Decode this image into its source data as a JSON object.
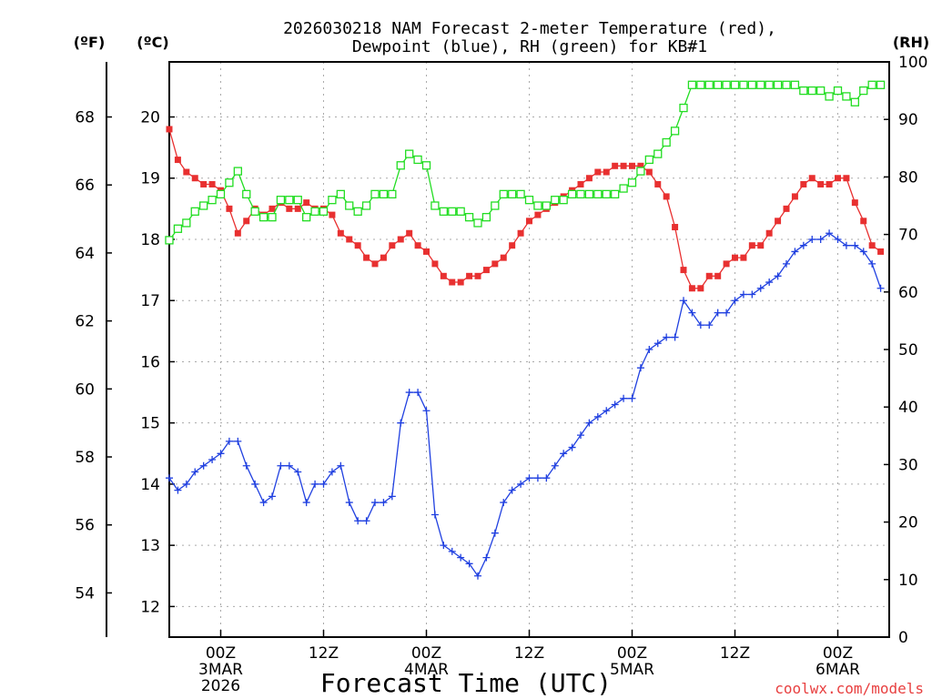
{
  "chart_data": {
    "type": "line",
    "title_line1": "2026030218 NAM Forecast 2-meter Temperature (red),",
    "title_line2": "Dewpoint (blue), RH (green) for KB#1",
    "xlabel": "Forecast Time (UTC)",
    "watermark": "coolwx.com/models",
    "left_outer_axis": {
      "label": "(ºF)",
      "ticks": [
        54,
        56,
        58,
        60,
        62,
        64,
        66,
        68
      ]
    },
    "left_axis": {
      "label": "(ºC)",
      "ylim": [
        11.5,
        20.9
      ],
      "ticks": [
        12,
        13,
        14,
        15,
        16,
        17,
        18,
        19,
        20
      ]
    },
    "right_axis": {
      "label": "(RH)",
      "ylim": [
        0,
        100
      ],
      "ticks": [
        0,
        10,
        20,
        30,
        40,
        50,
        60,
        70,
        80,
        90,
        100
      ]
    },
    "x_range_hours": [
      0,
      84
    ],
    "x_ticks": [
      {
        "hour": 6,
        "label": "00Z",
        "sub1": "3MAR",
        "sub2": "2026"
      },
      {
        "hour": 18,
        "label": "12Z"
      },
      {
        "hour": 30,
        "label": "00Z",
        "sub1": "4MAR"
      },
      {
        "hour": 42,
        "label": "12Z"
      },
      {
        "hour": 54,
        "label": "00Z",
        "sub1": "5MAR"
      },
      {
        "hour": 66,
        "label": "12Z"
      },
      {
        "hour": 78,
        "label": "00Z",
        "sub1": "6MAR"
      }
    ],
    "colors": {
      "temperature": "#e83030",
      "dewpoint": "#2040e0",
      "rh": "#22dd22",
      "grid": "#aaaaaa"
    },
    "series": [
      {
        "name": "Temperature",
        "unit": "C",
        "values": [
          19.8,
          19.3,
          19.1,
          19.0,
          18.9,
          18.9,
          18.8,
          18.5,
          18.1,
          18.3,
          18.5,
          18.4,
          18.5,
          18.6,
          18.5,
          18.5,
          18.6,
          18.5,
          18.5,
          18.4,
          18.1,
          18.0,
          17.9,
          17.7,
          17.6,
          17.7,
          17.9,
          18.0,
          18.1,
          17.9,
          17.8,
          17.6,
          17.4,
          17.3,
          17.3,
          17.4,
          17.4,
          17.5,
          17.6,
          17.7,
          17.9,
          18.1,
          18.3,
          18.4,
          18.5,
          18.6,
          18.7,
          18.8,
          18.9,
          19.0,
          19.1,
          19.1,
          19.2,
          19.2,
          19.2,
          19.2,
          19.1,
          18.9,
          18.7,
          18.2,
          17.5,
          17.2,
          17.2,
          17.4,
          17.4,
          17.6,
          17.7,
          17.7,
          17.9,
          17.9,
          18.1,
          18.3,
          18.5,
          18.7,
          18.9,
          19.0,
          18.9,
          18.9,
          19.0,
          19.0,
          18.6,
          18.3,
          17.9,
          17.8
        ]
      },
      {
        "name": "Dewpoint",
        "unit": "C",
        "values": [
          14.1,
          13.9,
          14.0,
          14.2,
          14.3,
          14.4,
          14.5,
          14.7,
          14.7,
          14.3,
          14.0,
          13.7,
          13.8,
          14.3,
          14.3,
          14.2,
          13.7,
          14.0,
          14.0,
          14.2,
          14.3,
          13.7,
          13.4,
          13.4,
          13.7,
          13.7,
          13.8,
          15.0,
          15.5,
          15.5,
          15.2,
          13.5,
          13.0,
          12.9,
          12.8,
          12.7,
          12.5,
          12.8,
          13.2,
          13.7,
          13.9,
          14.0,
          14.1,
          14.1,
          14.1,
          14.3,
          14.5,
          14.6,
          14.8,
          15.0,
          15.1,
          15.2,
          15.3,
          15.4,
          15.4,
          15.9,
          16.2,
          16.3,
          16.4,
          16.4,
          17.0,
          16.8,
          16.6,
          16.6,
          16.8,
          16.8,
          17.0,
          17.1,
          17.1,
          17.2,
          17.3,
          17.4,
          17.6,
          17.8,
          17.9,
          18.0,
          18.0,
          18.1,
          18.0,
          17.9,
          17.9,
          17.8,
          17.6,
          17.2
        ]
      },
      {
        "name": "RH",
        "unit": "%",
        "values": [
          69,
          71,
          72,
          74,
          75,
          76,
          77,
          79,
          81,
          77,
          74,
          73,
          73,
          76,
          76,
          76,
          73,
          74,
          74,
          76,
          77,
          75,
          74,
          75,
          77,
          77,
          77,
          82,
          84,
          83,
          82,
          75,
          74,
          74,
          74,
          73,
          72,
          73,
          75,
          77,
          77,
          77,
          76,
          75,
          75,
          76,
          76,
          77,
          77,
          77,
          77,
          77,
          77,
          78,
          79,
          81,
          83,
          84,
          86,
          88,
          92,
          96,
          96,
          96,
          96,
          96,
          96,
          96,
          96,
          96,
          96,
          96,
          96,
          96,
          95,
          95,
          95,
          94,
          95,
          94,
          93,
          95,
          96,
          96
        ]
      }
    ]
  }
}
